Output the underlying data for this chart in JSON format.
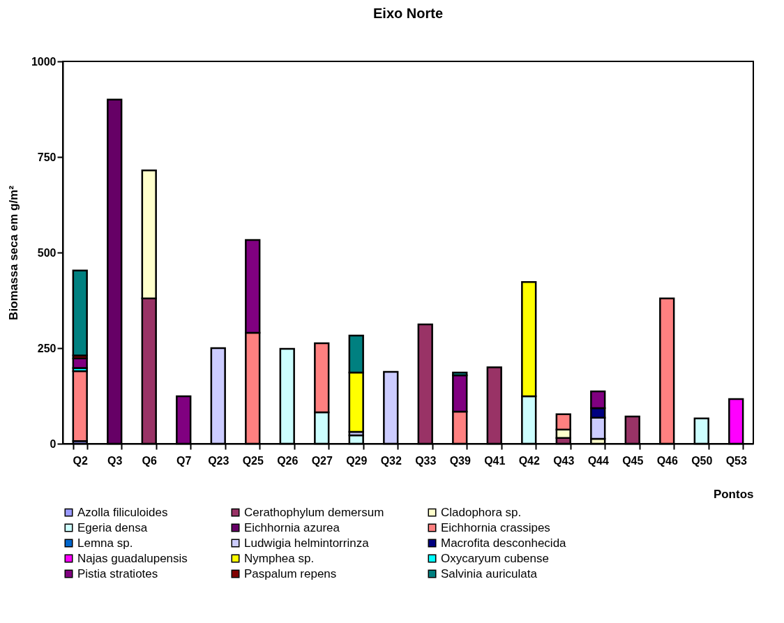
{
  "chart_data": {
    "type": "bar",
    "title": "Eixo Norte",
    "xlabel": "Pontos",
    "ylabel": "Biomassa seca em g/m²",
    "stacked": true,
    "legend": "bottom",
    "ylim": [
      0,
      1000
    ],
    "yticks": [
      0,
      250,
      500,
      750,
      1000
    ],
    "categories": [
      "Q2",
      "Q3",
      "Q6",
      "Q7",
      "Q23",
      "Q25",
      "Q26",
      "Q27",
      "Q29",
      "Q32",
      "Q33",
      "Q39",
      "Q41",
      "Q42",
      "Q43",
      "Q44",
      "Q45",
      "Q46",
      "Q50",
      "Q53"
    ],
    "series": [
      {
        "name": "Azolla filiculoides",
        "color": "#9999ff",
        "values": [
          7,
          null,
          null,
          null,
          null,
          null,
          null,
          null,
          null,
          null,
          null,
          null,
          null,
          null,
          null,
          null,
          null,
          null,
          null,
          null
        ]
      },
      {
        "name": "Cerathophylum demersum",
        "color": "#993366",
        "values": [
          null,
          null,
          380,
          null,
          null,
          null,
          null,
          null,
          null,
          null,
          312,
          null,
          200,
          null,
          15,
          null,
          71,
          null,
          null,
          null
        ]
      },
      {
        "name": "Cladophora sp.",
        "color": "#ffffcc",
        "values": [
          null,
          null,
          335,
          null,
          null,
          null,
          null,
          null,
          null,
          null,
          null,
          null,
          null,
          null,
          22,
          13,
          null,
          null,
          null,
          null
        ]
      },
      {
        "name": "Egeria densa",
        "color": "#ccffff",
        "values": [
          null,
          null,
          null,
          null,
          null,
          null,
          248,
          82,
          22,
          null,
          null,
          null,
          null,
          124,
          null,
          null,
          null,
          null,
          66,
          null
        ]
      },
      {
        "name": "Eichhornia azurea",
        "color": "#660066",
        "values": [
          null,
          900,
          null,
          null,
          null,
          null,
          null,
          null,
          null,
          null,
          null,
          null,
          null,
          null,
          null,
          null,
          null,
          null,
          null,
          null
        ]
      },
      {
        "name": "Eichhornia crassipes",
        "color": "#ff8080",
        "values": [
          183,
          null,
          null,
          null,
          null,
          290,
          null,
          181,
          null,
          null,
          null,
          84,
          null,
          null,
          40,
          null,
          null,
          380,
          null,
          null
        ]
      },
      {
        "name": "Lemna sp.",
        "color": "#0066cc",
        "values": [
          null,
          null,
          null,
          null,
          null,
          null,
          null,
          null,
          null,
          null,
          null,
          null,
          null,
          null,
          null,
          null,
          null,
          null,
          null,
          null
        ]
      },
      {
        "name": "Ludwigia helmintorrinza",
        "color": "#ccccff",
        "values": [
          null,
          null,
          null,
          null,
          250,
          null,
          null,
          null,
          9,
          188,
          null,
          null,
          null,
          null,
          null,
          55,
          null,
          null,
          null,
          null
        ]
      },
      {
        "name": "Macrofita desconhecida",
        "color": "#000080",
        "values": [
          null,
          null,
          null,
          null,
          null,
          null,
          null,
          null,
          null,
          null,
          null,
          null,
          null,
          null,
          null,
          25,
          null,
          null,
          null,
          null
        ]
      },
      {
        "name": "Najas guadalupensis",
        "color": "#ff00ff",
        "values": [
          null,
          null,
          null,
          null,
          null,
          null,
          null,
          null,
          null,
          null,
          null,
          null,
          null,
          null,
          null,
          null,
          null,
          null,
          null,
          117
        ]
      },
      {
        "name": "Nymphea sp.",
        "color": "#ffff00",
        "values": [
          null,
          null,
          null,
          null,
          null,
          null,
          null,
          null,
          155,
          null,
          null,
          null,
          null,
          299,
          null,
          null,
          null,
          null,
          null,
          null
        ]
      },
      {
        "name": "Oxycaryum cubense",
        "color": "#00ffff",
        "values": [
          8,
          null,
          null,
          null,
          null,
          null,
          null,
          null,
          null,
          null,
          null,
          null,
          null,
          null,
          null,
          null,
          null,
          null,
          null,
          null
        ]
      },
      {
        "name": "Pistia stratiotes",
        "color": "#800080",
        "values": [
          25,
          null,
          null,
          124,
          null,
          243,
          null,
          null,
          null,
          null,
          null,
          95,
          null,
          null,
          null,
          44,
          null,
          null,
          null,
          null
        ]
      },
      {
        "name": "Paspalum repens",
        "color": "#800000",
        "values": [
          8,
          null,
          null,
          null,
          null,
          null,
          null,
          null,
          null,
          null,
          null,
          null,
          null,
          null,
          null,
          null,
          null,
          null,
          null,
          null
        ]
      },
      {
        "name": "Salvinia auriculata",
        "color": "#008080",
        "values": [
          222,
          null,
          null,
          null,
          null,
          null,
          null,
          null,
          97,
          null,
          null,
          7,
          null,
          null,
          null,
          null,
          null,
          null,
          null,
          null
        ]
      }
    ]
  }
}
